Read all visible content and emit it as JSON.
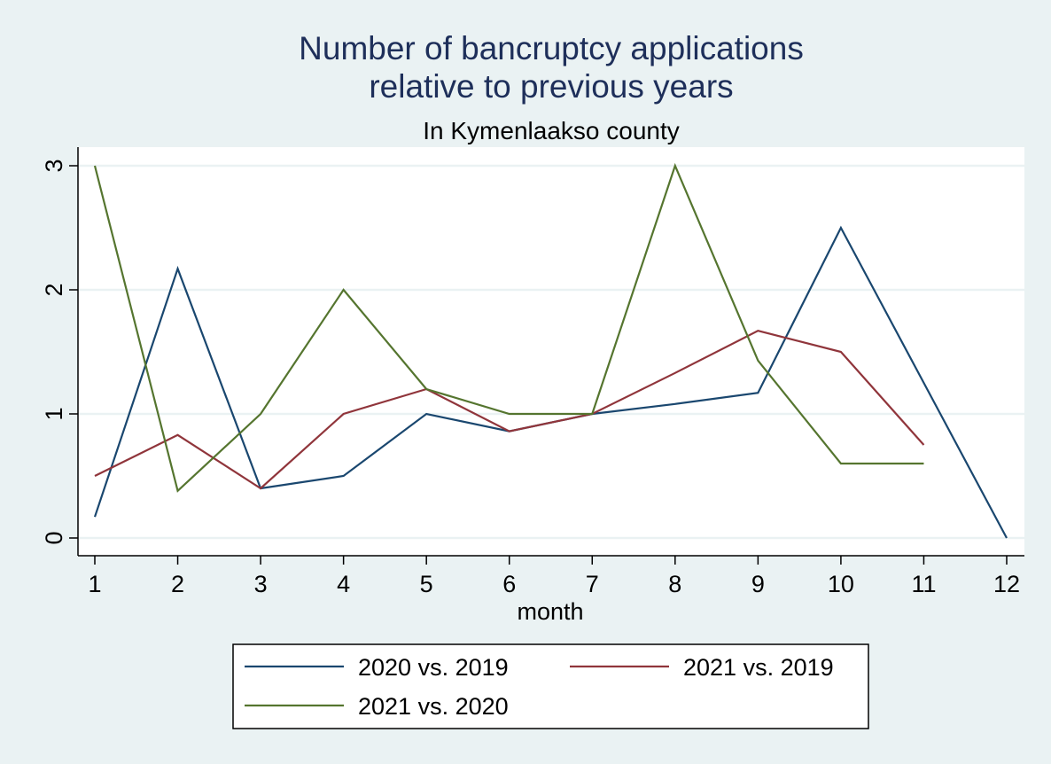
{
  "chart_data": {
    "type": "line",
    "title": [
      "Number of bancruptcy applications",
      "relative to previous years"
    ],
    "subtitle": "In Kymenlaakso county",
    "xlabel": "month",
    "ylabel": "",
    "x": [
      1,
      2,
      3,
      4,
      5,
      6,
      7,
      8,
      9,
      10,
      11,
      12
    ],
    "xlim": [
      1,
      12
    ],
    "ylim": [
      0,
      3
    ],
    "yticks": [
      0,
      1,
      2,
      3
    ],
    "grid": true,
    "legend_position": "bottom",
    "series": [
      {
        "name": "2020 vs. 2019",
        "color": "#1a476f",
        "values": [
          0.17,
          2.17,
          0.4,
          0.5,
          1.0,
          0.86,
          1.0,
          1.08,
          1.17,
          2.5,
          1.25,
          0
        ]
      },
      {
        "name": "2021 vs. 2019",
        "color": "#90353b",
        "values": [
          0.5,
          0.83,
          0.4,
          1.0,
          1.2,
          0.86,
          1.0,
          1.33,
          1.67,
          1.5,
          0.75,
          null
        ]
      },
      {
        "name": "2021 vs. 2020",
        "color": "#55752f",
        "values": [
          3.0,
          0.38,
          1.0,
          2.0,
          1.2,
          1.0,
          1.0,
          3.0,
          1.43,
          0.6,
          0.6,
          null
        ]
      }
    ]
  }
}
